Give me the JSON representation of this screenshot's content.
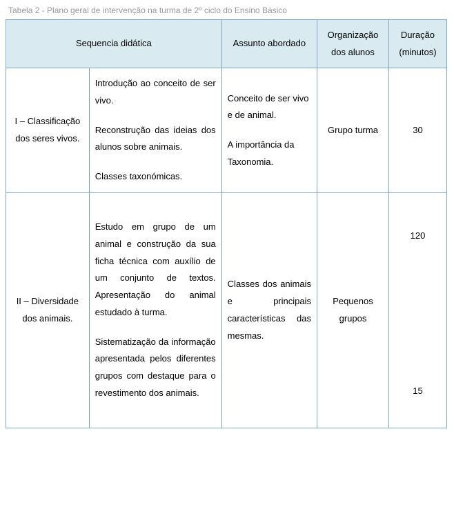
{
  "caption": "Tabela 2 - Plano geral de intervenção na turma de 2º ciclo do Ensino Básico",
  "headers": {
    "sequencia": "Sequencia didática",
    "assunto": "Assunto abordado",
    "organizacao": "Organização dos alunos",
    "duracao": "Duração (minutos)"
  },
  "rows": [
    {
      "seq_title": "I – Classificação dos seres vivos.",
      "seq_desc": [
        "Introdução ao conceito de ser vivo.",
        "Reconstrução das ideias dos alunos sobre animais.",
        "Classes taxonómicas."
      ],
      "assunto": [
        "Conceito de ser vivo e de animal.",
        "",
        "A importância da Taxonomia."
      ],
      "organizacao": "Grupo turma",
      "duracao": [
        "30"
      ]
    },
    {
      "seq_title": "II – Diversidade dos animais.",
      "seq_desc": [
        "Estudo em grupo de um animal e construção da sua ficha técnica com auxílio de um conjunto de textos. Apresentação do animal estudado à turma.",
        "Sistematização da informação apresentada pelos diferentes grupos com destaque para o revestimento dos animais."
      ],
      "assunto": [
        "Classes dos animais e principais características das mesmas."
      ],
      "organizacao": "Pequenos grupos",
      "duracao": [
        "120",
        "15"
      ]
    }
  ]
}
